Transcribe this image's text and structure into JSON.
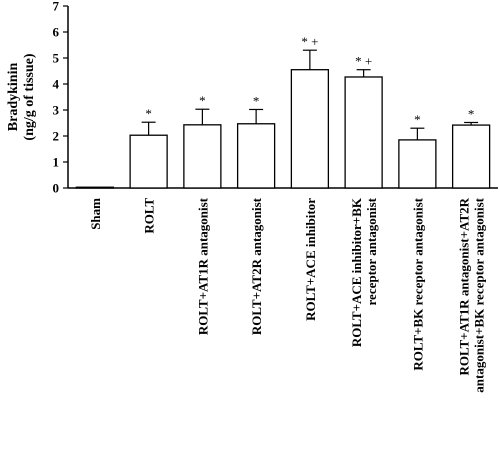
{
  "chart_data": {
    "type": "bar",
    "title": "",
    "xlabel": "",
    "ylabel_lines": [
      "Bradykinin",
      "(ng/g of tissue)"
    ],
    "ylim": [
      0,
      7
    ],
    "yticks": [
      0,
      1,
      2,
      3,
      4,
      5,
      6,
      7
    ],
    "grid": false,
    "categories": [
      {
        "lines": [
          "Sham"
        ]
      },
      {
        "lines": [
          "ROLT"
        ]
      },
      {
        "lines": [
          "ROLT+AT1R antagonist"
        ]
      },
      {
        "lines": [
          "ROLT+AT2R antagonist"
        ]
      },
      {
        "lines": [
          "ROLT+ACE inhibitor"
        ]
      },
      {
        "lines": [
          "ROLT+ACE inhibitor+BK",
          "receptor antagonist"
        ]
      },
      {
        "lines": [
          "ROLT+BK receptor antagonist"
        ]
      },
      {
        "lines": [
          "ROLT+AT1R antagonist+AT2R",
          "antagonist+BK receptor antagonist"
        ]
      }
    ],
    "series": [
      {
        "values": [
          0.03,
          2.03,
          2.43,
          2.47,
          4.55,
          4.27,
          1.85,
          2.42
        ],
        "errors": [
          0.02,
          0.5,
          0.6,
          0.55,
          0.75,
          0.28,
          0.45,
          0.1
        ],
        "annotations": [
          "",
          "*",
          "*",
          "*",
          "* +",
          "* +",
          "*",
          "*"
        ]
      }
    ],
    "colors": {
      "bar_fill": "#ffffff",
      "bar_stroke": "#000000"
    }
  }
}
